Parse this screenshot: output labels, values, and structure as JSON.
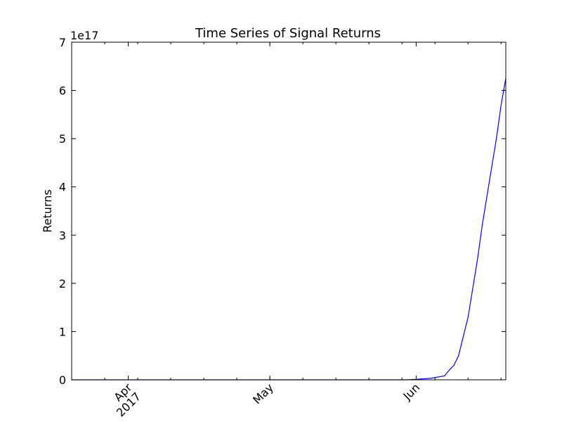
{
  "chart_data": {
    "type": "line",
    "title": "Time Series of Signal Returns",
    "xlabel": "",
    "ylabel": "Returns",
    "y_offset_label": "1e17",
    "y_scale": 1e+17,
    "xlim": [
      "2017-03-20",
      "2017-06-20"
    ],
    "ylim": [
      0,
      7
    ],
    "x_ticks": [
      {
        "date": "2017-04-01",
        "label": "Apr",
        "sublabel": "2017"
      },
      {
        "date": "2017-05-01",
        "label": "May",
        "sublabel": ""
      },
      {
        "date": "2017-06-01",
        "label": "Jun",
        "sublabel": ""
      }
    ],
    "y_ticks": [
      0,
      1,
      2,
      3,
      4,
      5,
      6,
      7
    ],
    "grid": false,
    "series": [
      {
        "name": "",
        "color": "#0000ff",
        "x": [
          "2017-03-20",
          "2017-04-15",
          "2017-05-15",
          "2017-05-30",
          "2017-06-01",
          "2017-06-04",
          "2017-06-07",
          "2017-06-08",
          "2017-06-09",
          "2017-06-10",
          "2017-06-11",
          "2017-06-12",
          "2017-06-13",
          "2017-06-14",
          "2017-06-15",
          "2017-06-16",
          "2017-06-17",
          "2017-06-18",
          "2017-06-19",
          "2017-06-20"
        ],
        "y": [
          0,
          0,
          0,
          0,
          0.01,
          0.03,
          0.08,
          0.2,
          0.3,
          0.5,
          0.9,
          1.3,
          1.9,
          2.5,
          3.2,
          3.8,
          4.4,
          5.0,
          5.7,
          6.25
        ]
      }
    ]
  }
}
